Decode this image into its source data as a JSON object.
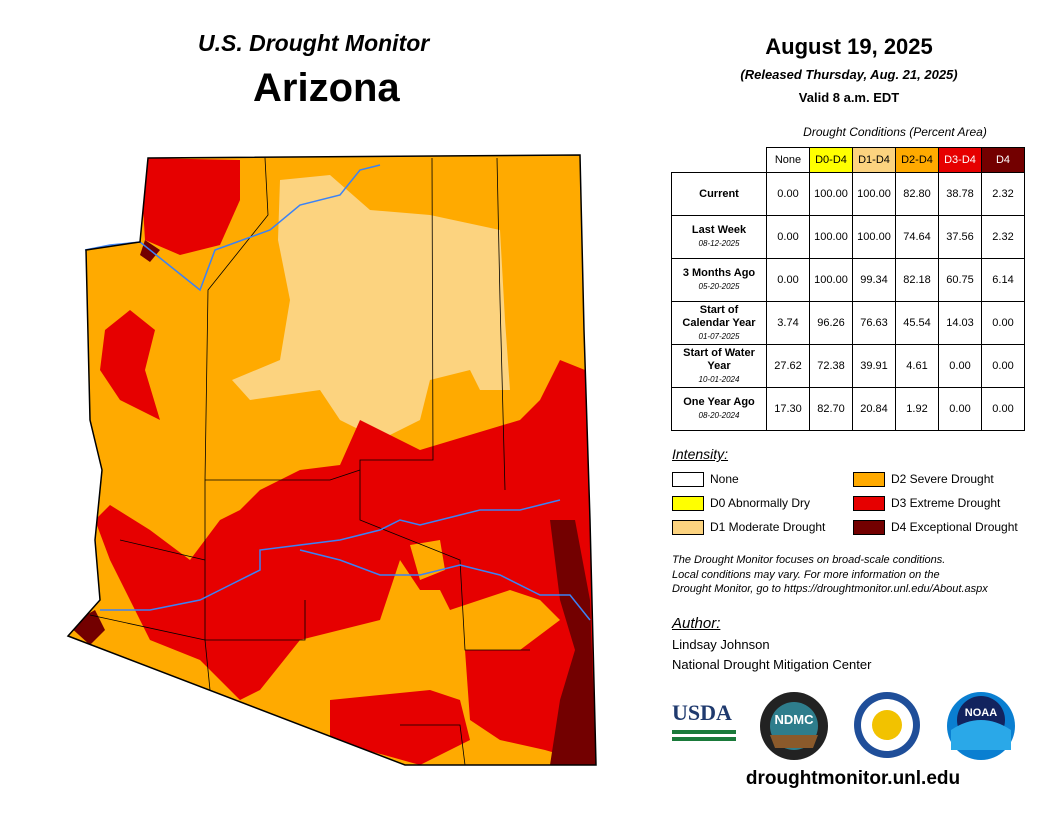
{
  "header": {
    "subtitle": "U.S. Drought Monitor",
    "title": "Arizona"
  },
  "dates": {
    "date": "August 19, 2025",
    "released": "(Released Thursday, Aug. 21, 2025)",
    "valid": "Valid 8 a.m. EDT"
  },
  "table": {
    "caption": "Drought Conditions (Percent Area)",
    "columns": [
      "None",
      "D0-D4",
      "D1-D4",
      "D2-D4",
      "D3-D4",
      "D4"
    ],
    "rows": [
      {
        "label": "Current",
        "values": [
          "0.00",
          "100.00",
          "100.00",
          "82.80",
          "38.78",
          "2.32"
        ]
      },
      {
        "label": "Last Week",
        "date": "08-12-2025",
        "values": [
          "0.00",
          "100.00",
          "100.00",
          "74.64",
          "37.56",
          "2.32"
        ]
      },
      {
        "label": "3 Months Ago",
        "date": "05-20-2025",
        "values": [
          "0.00",
          "100.00",
          "99.34",
          "82.18",
          "60.75",
          "6.14"
        ]
      },
      {
        "label": "Start of Calendar Year",
        "date": "01-07-2025",
        "values": [
          "3.74",
          "96.26",
          "76.63",
          "45.54",
          "14.03",
          "0.00"
        ]
      },
      {
        "label": "Start of Water Year",
        "date": "10-01-2024",
        "values": [
          "27.62",
          "72.38",
          "39.91",
          "4.61",
          "0.00",
          "0.00"
        ]
      },
      {
        "label": "One Year Ago",
        "date": "08-20-2024",
        "values": [
          "17.30",
          "82.70",
          "20.84",
          "1.92",
          "0.00",
          "0.00"
        ]
      }
    ]
  },
  "legend": {
    "title": "Intensity:",
    "items": [
      "None",
      "D0 Abnormally Dry",
      "D1 Moderate Drought",
      "D2 Severe Drought",
      "D3 Extreme Drought",
      "D4 Exceptional Drought"
    ]
  },
  "note": [
    "The Drought Monitor focuses on broad-scale conditions.",
    "Local conditions may vary. For more information on the",
    "Drought Monitor, go to https://droughtmonitor.unl.edu/About.aspx"
  ],
  "author": {
    "label": "Author:",
    "name": "Lindsay Johnson",
    "org": "National Drought Mitigation Center"
  },
  "logos": [
    "USDA",
    "NDMC",
    "NOAA"
  ],
  "url": "droughtmonitor.unl.edu"
}
